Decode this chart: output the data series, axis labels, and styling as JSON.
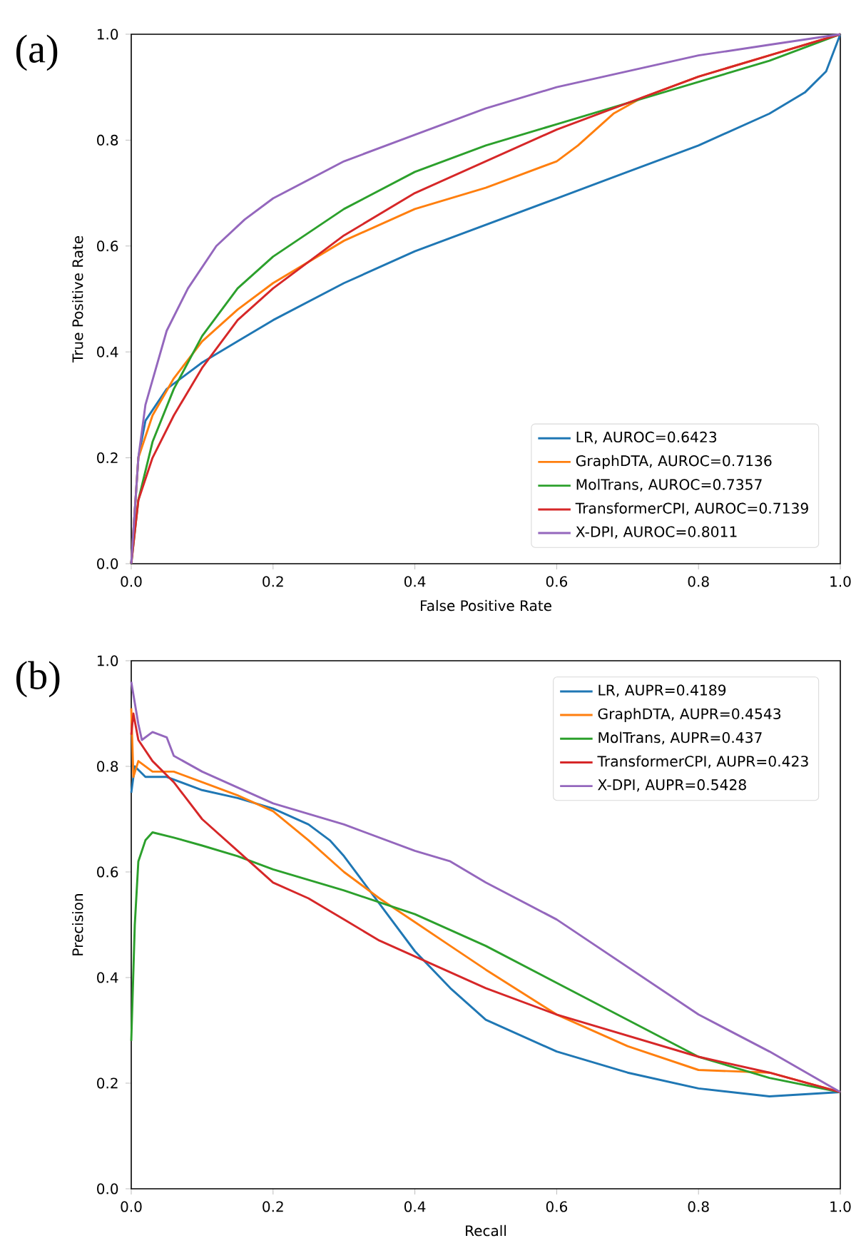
{
  "chart_data": [
    {
      "type": "line",
      "xlabel": "False Positive Rate",
      "ylabel": "True Positive Rate",
      "annotations": [
        "(a)"
      ],
      "xlim": [
        0,
        1
      ],
      "ylim": [
        0,
        1
      ],
      "xticks": [
        {
          "value": 0,
          "label": "0.0"
        },
        {
          "value": 0.2,
          "label": "0.2"
        },
        {
          "value": 0.4,
          "label": "0.4"
        },
        {
          "value": 0.6,
          "label": "0.6"
        },
        {
          "value": 0.8,
          "label": "0.8"
        },
        {
          "value": 1,
          "label": "1.0"
        }
      ],
      "yticks": [
        {
          "value": 0,
          "label": "0.0"
        },
        {
          "value": 0.2,
          "label": "0.2"
        },
        {
          "value": 0.4,
          "label": "0.4"
        },
        {
          "value": 0.6,
          "label": "0.6"
        },
        {
          "value": 0.8,
          "label": "0.8"
        },
        {
          "value": 1,
          "label": "1.0"
        }
      ],
      "legend": "bottom right",
      "grid": false,
      "marker": "none",
      "line_style": "solid",
      "series": [
        {
          "name": "LR, AUROC=0.6423",
          "color": "#1f77b4",
          "x": [
            0,
            0.01,
            0.02,
            0.05,
            0.1,
            0.15,
            0.2,
            0.3,
            0.4,
            0.5,
            0.6,
            0.7,
            0.8,
            0.9,
            0.95,
            0.98,
            1
          ],
          "values": [
            0,
            0.2,
            0.27,
            0.33,
            0.38,
            0.42,
            0.46,
            0.53,
            0.59,
            0.64,
            0.69,
            0.74,
            0.79,
            0.85,
            0.89,
            0.93,
            1
          ]
        },
        {
          "name": "GraphDTA, AUROC=0.7136",
          "color": "#ff7f0e",
          "x": [
            0,
            0.01,
            0.03,
            0.06,
            0.1,
            0.15,
            0.2,
            0.3,
            0.4,
            0.5,
            0.6,
            0.63,
            0.68,
            0.72,
            0.8,
            0.9,
            1
          ],
          "values": [
            0,
            0.2,
            0.28,
            0.35,
            0.42,
            0.48,
            0.53,
            0.61,
            0.67,
            0.71,
            0.76,
            0.79,
            0.85,
            0.88,
            0.92,
            0.96,
            1
          ]
        },
        {
          "name": "MolTrans, AUROC=0.7357",
          "color": "#2ca02c",
          "x": [
            0,
            0.01,
            0.03,
            0.06,
            0.1,
            0.15,
            0.2,
            0.3,
            0.4,
            0.5,
            0.6,
            0.7,
            0.8,
            0.9,
            1
          ],
          "values": [
            0,
            0.12,
            0.23,
            0.33,
            0.43,
            0.52,
            0.58,
            0.67,
            0.74,
            0.79,
            0.83,
            0.87,
            0.91,
            0.95,
            1
          ]
        },
        {
          "name": "TransformerCPI, AUROC=0.7139",
          "color": "#d62728",
          "x": [
            0,
            0.01,
            0.03,
            0.06,
            0.1,
            0.15,
            0.2,
            0.3,
            0.4,
            0.5,
            0.6,
            0.7,
            0.8,
            0.9,
            1
          ],
          "values": [
            0,
            0.12,
            0.2,
            0.28,
            0.37,
            0.46,
            0.52,
            0.62,
            0.7,
            0.76,
            0.82,
            0.87,
            0.92,
            0.96,
            1
          ]
        },
        {
          "name": "X-DPI, AUROC=0.8011",
          "color": "#9467bd",
          "x": [
            0,
            0.01,
            0.02,
            0.05,
            0.08,
            0.12,
            0.16,
            0.2,
            0.3,
            0.4,
            0.5,
            0.6,
            0.7,
            0.8,
            0.9,
            1
          ],
          "values": [
            0,
            0.2,
            0.3,
            0.44,
            0.52,
            0.6,
            0.65,
            0.69,
            0.76,
            0.81,
            0.86,
            0.9,
            0.93,
            0.96,
            0.98,
            1
          ]
        }
      ]
    },
    {
      "type": "line",
      "xlabel": "Recall",
      "ylabel": "Precision",
      "annotations": [
        "(b)"
      ],
      "xlim": [
        0,
        1
      ],
      "ylim": [
        0,
        1
      ],
      "xticks": [
        {
          "value": 0,
          "label": "0.0"
        },
        {
          "value": 0.2,
          "label": "0.2"
        },
        {
          "value": 0.4,
          "label": "0.4"
        },
        {
          "value": 0.6,
          "label": "0.6"
        },
        {
          "value": 0.8,
          "label": "0.8"
        },
        {
          "value": 1,
          "label": "1.0"
        }
      ],
      "yticks": [
        {
          "value": 0,
          "label": "0.0"
        },
        {
          "value": 0.2,
          "label": "0.2"
        },
        {
          "value": 0.4,
          "label": "0.4"
        },
        {
          "value": 0.6,
          "label": "0.6"
        },
        {
          "value": 0.8,
          "label": "0.8"
        },
        {
          "value": 1,
          "label": "1.0"
        }
      ],
      "legend": "top right",
      "grid": false,
      "marker": "none",
      "line_style": "solid",
      "series": [
        {
          "name": "LR, AUPR=0.4189",
          "color": "#1f77b4",
          "x": [
            0,
            0.005,
            0.02,
            0.05,
            0.1,
            0.15,
            0.2,
            0.25,
            0.28,
            0.3,
            0.35,
            0.4,
            0.45,
            0.5,
            0.6,
            0.7,
            0.8,
            0.9,
            1
          ],
          "values": [
            0.75,
            0.8,
            0.78,
            0.78,
            0.755,
            0.74,
            0.72,
            0.69,
            0.66,
            0.63,
            0.54,
            0.45,
            0.38,
            0.32,
            0.26,
            0.22,
            0.19,
            0.175,
            0.183
          ]
        },
        {
          "name": "GraphDTA, AUPR=0.4543",
          "color": "#ff7f0e",
          "x": [
            0,
            0.003,
            0.01,
            0.03,
            0.06,
            0.1,
            0.15,
            0.2,
            0.25,
            0.3,
            0.35,
            0.4,
            0.45,
            0.5,
            0.6,
            0.7,
            0.8,
            0.9,
            1
          ],
          "values": [
            0.91,
            0.78,
            0.81,
            0.79,
            0.79,
            0.77,
            0.745,
            0.715,
            0.66,
            0.6,
            0.55,
            0.505,
            0.46,
            0.415,
            0.33,
            0.27,
            0.225,
            0.22,
            0.183
          ]
        },
        {
          "name": "MolTrans, AUPR=0.437",
          "color": "#2ca02c",
          "x": [
            0,
            0.005,
            0.01,
            0.02,
            0.03,
            0.06,
            0.1,
            0.15,
            0.2,
            0.3,
            0.4,
            0.5,
            0.6,
            0.7,
            0.8,
            0.9,
            1
          ],
          "values": [
            0.28,
            0.5,
            0.62,
            0.66,
            0.675,
            0.665,
            0.65,
            0.63,
            0.605,
            0.565,
            0.52,
            0.46,
            0.39,
            0.32,
            0.25,
            0.21,
            0.183
          ]
        },
        {
          "name": "TransformerCPI, AUPR=0.423",
          "color": "#d62728",
          "x": [
            0,
            0.003,
            0.01,
            0.03,
            0.06,
            0.1,
            0.15,
            0.2,
            0.25,
            0.3,
            0.35,
            0.4,
            0.5,
            0.6,
            0.7,
            0.8,
            0.9,
            1
          ],
          "values": [
            0.86,
            0.9,
            0.85,
            0.81,
            0.77,
            0.7,
            0.64,
            0.58,
            0.55,
            0.51,
            0.47,
            0.44,
            0.38,
            0.33,
            0.29,
            0.25,
            0.22,
            0.183
          ]
        },
        {
          "name": "X-DPI, AUPR=0.5428",
          "color": "#9467bd",
          "x": [
            0,
            0.01,
            0.015,
            0.03,
            0.05,
            0.06,
            0.1,
            0.15,
            0.2,
            0.3,
            0.4,
            0.45,
            0.5,
            0.6,
            0.7,
            0.8,
            0.9,
            1
          ],
          "values": [
            0.96,
            0.88,
            0.85,
            0.865,
            0.855,
            0.82,
            0.79,
            0.76,
            0.73,
            0.69,
            0.64,
            0.62,
            0.58,
            0.51,
            0.42,
            0.33,
            0.26,
            0.183
          ]
        }
      ]
    }
  ]
}
